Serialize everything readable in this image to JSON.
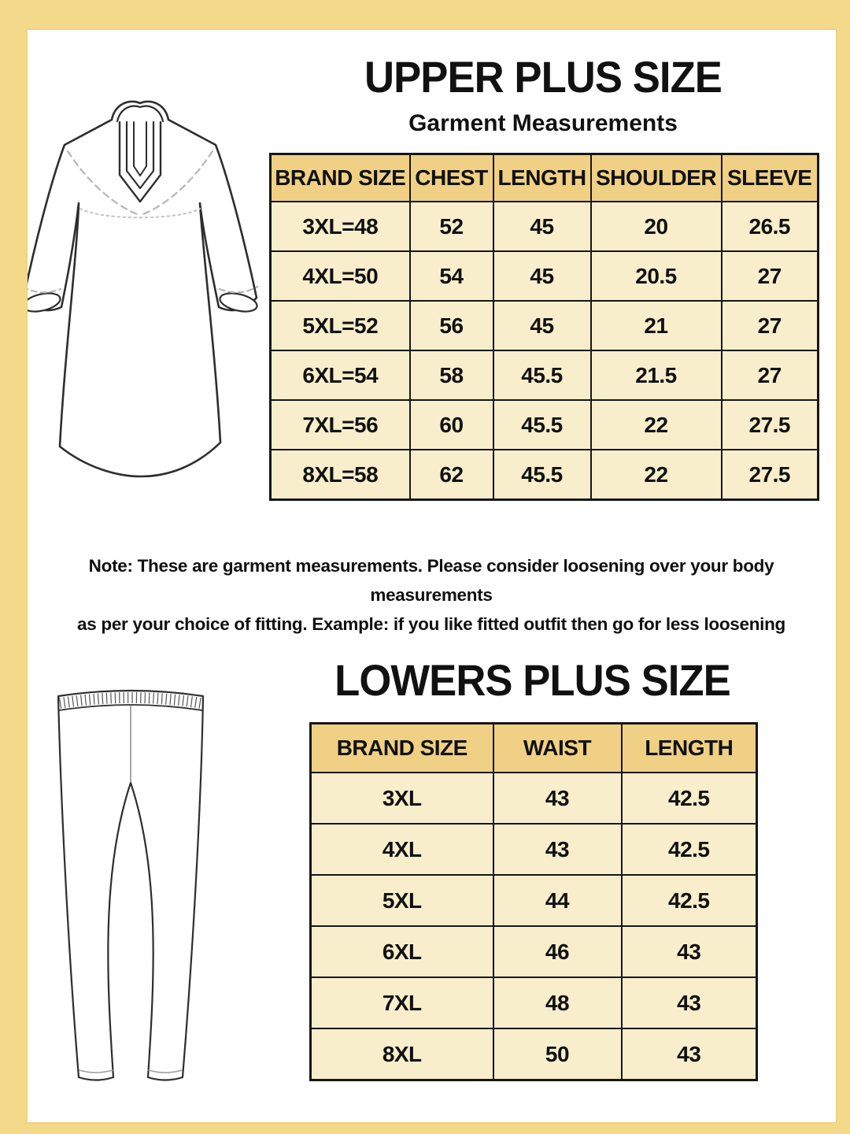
{
  "upper": {
    "title": "UPPER PLUS SIZE",
    "subtitle": "Garment Measurements",
    "table": {
      "columns": [
        "BRAND SIZE",
        "CHEST",
        "LENGTH",
        "SHOULDER",
        "SLEEVE"
      ],
      "rows": [
        [
          "3XL=48",
          "52",
          "45",
          "20",
          "26.5"
        ],
        [
          "4XL=50",
          "54",
          "45",
          "20.5",
          "27"
        ],
        [
          "5XL=52",
          "56",
          "45",
          "21",
          "27"
        ],
        [
          "6XL=54",
          "58",
          "45.5",
          "21.5",
          "27"
        ],
        [
          "7XL=56",
          "60",
          "45.5",
          "22",
          "27.5"
        ],
        [
          "8XL=58",
          "62",
          "45.5",
          "22",
          "27.5"
        ]
      ]
    }
  },
  "note": {
    "line1": "Note: These are garment measurements. Please consider loosening over your body measurements",
    "line2": "as per your choice of fitting. Example: if you like fitted outfit then go for less loosening"
  },
  "lower": {
    "title": "LOWERS PLUS SIZE",
    "table": {
      "columns": [
        "BRAND SIZE",
        "WAIST",
        "LENGTH"
      ],
      "rows": [
        [
          "3XL",
          "43",
          "42.5"
        ],
        [
          "4XL",
          "43",
          "42.5"
        ],
        [
          "5XL",
          "44",
          "42.5"
        ],
        [
          "6XL",
          "46",
          "43"
        ],
        [
          "7XL",
          "48",
          "43"
        ],
        [
          "8XL",
          "50",
          "43"
        ]
      ]
    }
  },
  "icons": {
    "kurta": "kurta-line-drawing",
    "leggings": "leggings-line-drawing"
  },
  "colors": {
    "border_yellow": "#f4d98b",
    "border_yellow_dark": "#e9cd74",
    "header_gold": "#f0d084",
    "cell_cream": "#f8eecc",
    "ink": "#111111"
  }
}
